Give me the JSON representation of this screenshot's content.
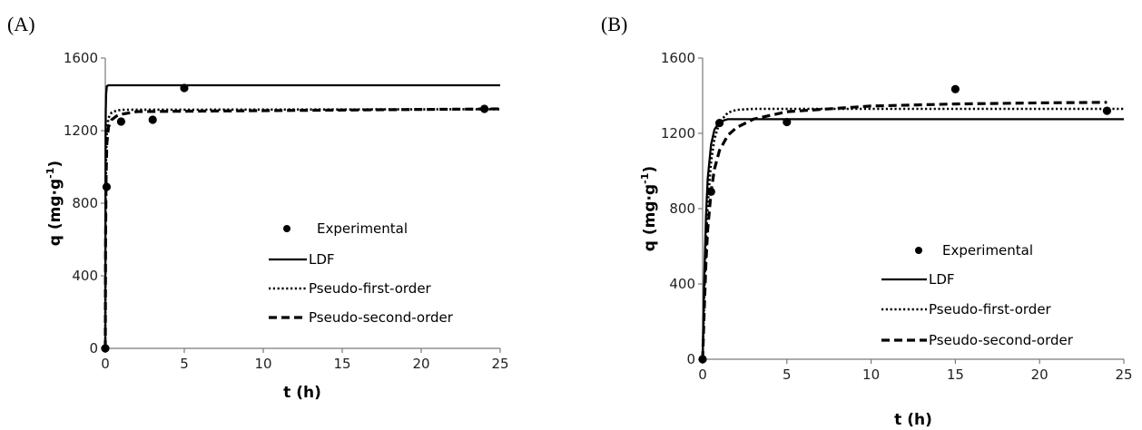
{
  "chart_data": [
    {
      "panel_label": "(A)",
      "type": "scatter",
      "xlabel": "t (h)",
      "ylabel_main": "q (mg·g",
      "ylabel_sup": "-1",
      "ylabel_close": ")",
      "xlim": [
        0,
        25
      ],
      "ylim": [
        0,
        1600
      ],
      "xticks": [
        0,
        5,
        10,
        15,
        20,
        25
      ],
      "yticks": [
        0,
        400,
        800,
        1200,
        1600
      ],
      "grid": false,
      "legend_position": "right",
      "series": [
        {
          "name": "Experimental",
          "kind": "points",
          "x": [
            0,
            0.083,
            1,
            3,
            5,
            24
          ],
          "y": [
            0,
            890,
            1250,
            1260,
            1435,
            1320
          ]
        },
        {
          "name": "LDF",
          "kind": "line",
          "dash": "solid",
          "x": [
            0,
            0.01,
            0.02,
            0.03,
            0.05,
            0.1,
            0.2,
            25
          ],
          "y": [
            0,
            800,
            1150,
            1310,
            1400,
            1445,
            1450,
            1450
          ]
        },
        {
          "name": "Pseudo-first-order",
          "kind": "line",
          "dash": "dot",
          "x": [
            0,
            0.02,
            0.05,
            0.1,
            0.2,
            0.4,
            0.7,
            1,
            25
          ],
          "y": [
            0,
            700,
            1050,
            1200,
            1270,
            1300,
            1310,
            1315,
            1318
          ]
        },
        {
          "name": "Pseudo-second-order",
          "kind": "line",
          "dash": "dash",
          "x": [
            0,
            0.02,
            0.05,
            0.1,
            0.2,
            0.4,
            0.7,
            1,
            2,
            25
          ],
          "y": [
            0,
            600,
            950,
            1130,
            1220,
            1260,
            1280,
            1290,
            1305,
            1320
          ]
        }
      ]
    },
    {
      "panel_label": "(B)",
      "type": "scatter",
      "xlabel": "t (h)",
      "ylabel_main": "q (mg·g",
      "ylabel_sup": "-1",
      "ylabel_close": ")",
      "xlim": [
        0,
        25
      ],
      "ylim": [
        0,
        1600
      ],
      "xticks": [
        0,
        5,
        10,
        15,
        20,
        25
      ],
      "yticks": [
        0,
        400,
        800,
        1200,
        1600
      ],
      "grid": false,
      "legend_position": "bottom-right",
      "series": [
        {
          "name": "Experimental",
          "kind": "points",
          "x": [
            0,
            0.5,
            1,
            5,
            15,
            24
          ],
          "y": [
            0,
            890,
            1255,
            1260,
            1435,
            1320
          ]
        },
        {
          "name": "LDF",
          "kind": "line",
          "dash": "solid",
          "x": [
            0,
            0.1,
            0.2,
            0.3,
            0.5,
            0.7,
            1,
            1.5,
            25
          ],
          "y": [
            0,
            450,
            760,
            960,
            1140,
            1220,
            1262,
            1275,
            1275
          ]
        },
        {
          "name": "Pseudo-first-order",
          "kind": "line",
          "dash": "dot",
          "x": [
            0,
            0.1,
            0.2,
            0.3,
            0.5,
            0.7,
            1,
            1.5,
            2,
            3,
            25
          ],
          "y": [
            0,
            350,
            620,
            820,
            1050,
            1170,
            1260,
            1310,
            1325,
            1330,
            1330
          ]
        },
        {
          "name": "Pseudo-second-order",
          "kind": "line",
          "dash": "dash",
          "x": [
            0,
            0.1,
            0.2,
            0.3,
            0.5,
            0.7,
            1,
            1.5,
            2,
            3,
            5,
            10,
            15,
            20,
            24
          ],
          "y": [
            0,
            280,
            520,
            690,
            890,
            1010,
            1110,
            1190,
            1230,
            1275,
            1315,
            1345,
            1356,
            1362,
            1365
          ]
        }
      ]
    }
  ]
}
